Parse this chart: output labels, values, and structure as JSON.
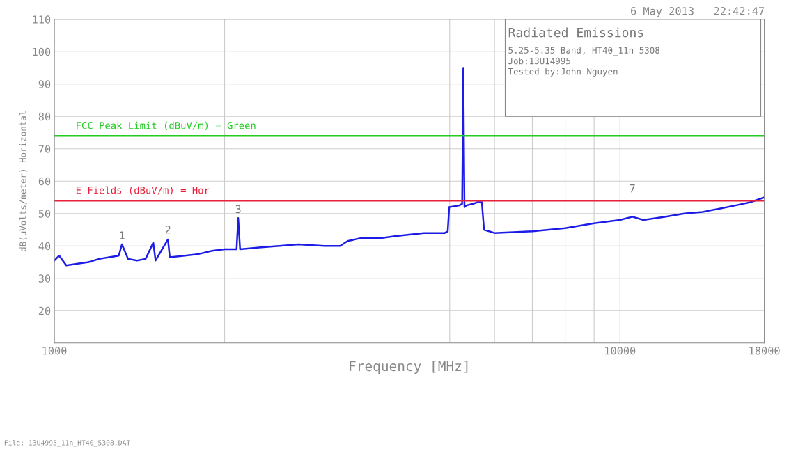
{
  "chart_data": {
    "type": "line",
    "title": "Radiated Emissions",
    "xlabel": "Frequency [MHz]",
    "ylabel": "dB(uVolts/meter) Horizontal",
    "log": "x",
    "xlim": [
      1000,
      18000
    ],
    "xticks": [
      1000,
      {
        "value": 2000,
        "label": null
      },
      {
        "value": 5000,
        "label": null
      },
      {
        "value": 6000,
        "label": null
      },
      {
        "value": 7000,
        "label": null
      },
      {
        "value": 8000,
        "label": null
      },
      {
        "value": 9000,
        "label": null
      },
      10000,
      18000
    ],
    "ylim": [
      10,
      110
    ],
    "yticks": [
      20,
      30,
      40,
      50,
      60,
      70,
      80,
      90,
      100,
      110
    ],
    "grid": true,
    "marker": "none",
    "line_style": "solid",
    "series": [
      {
        "color": "#1c1ce6",
        "x": [
          1000,
          1020,
          1050,
          1100,
          1150,
          1200,
          1250,
          1300,
          1317,
          1350,
          1400,
          1450,
          1496,
          1510,
          1588,
          1600,
          1700,
          1800,
          1900,
          2000,
          2100,
          2114,
          2130,
          2300,
          2500,
          2700,
          3000,
          3200,
          3300,
          3500,
          3800,
          4000,
          4500,
          4900,
          4960,
          4990,
          5200,
          5260,
          5285,
          5310,
          5350,
          5500,
          5600,
          5700,
          5720,
          5750,
          6000,
          7000,
          8000,
          9000,
          10000,
          10520,
          11000,
          12000,
          13000,
          14000,
          15000,
          16000,
          17000,
          18000
        ],
        "values": [
          35.5,
          37,
          34,
          34.5,
          35,
          36,
          36.5,
          37,
          40.5,
          36,
          35.5,
          36,
          41,
          35.5,
          42,
          36.5,
          37,
          37.5,
          38.5,
          39,
          39,
          48.6,
          39,
          39.5,
          40,
          40.5,
          40,
          40,
          41.5,
          42.5,
          42.5,
          43,
          44,
          44,
          44.5,
          52,
          52.5,
          53,
          95,
          52,
          52.5,
          53,
          53.5,
          53.5,
          50,
          45,
          44,
          44.5,
          45.5,
          47,
          48,
          49,
          48,
          49,
          50,
          50.5,
          51.5,
          52.5,
          53.5,
          55
        ]
      }
    ],
    "ref_lines": [
      {
        "axis": "y",
        "value": 74,
        "label": "FCC Peak Limit (dBuV/m) = Green",
        "color": "#22cc22"
      },
      {
        "axis": "y",
        "value": 54,
        "label": "E-Fields (dBuV/m) = Hor",
        "color": "#e8203a"
      }
    ],
    "annotations": [
      "6 May 2013   22:42:47",
      "5.25-5.35 Band, HT40_11n 5308",
      "Job:13U14995",
      "Tested by:John Nguyen",
      "File: 13U4995_11n_HT40_5308.DAT",
      {
        "text": "1",
        "x": 1317,
        "y": 40.5
      },
      {
        "text": "2",
        "x": 1588,
        "y": 42.3
      },
      {
        "text": "3",
        "x": 2114,
        "y": 48.6
      },
      {
        "text": "7",
        "x": 10520,
        "y": 55
      }
    ]
  }
}
